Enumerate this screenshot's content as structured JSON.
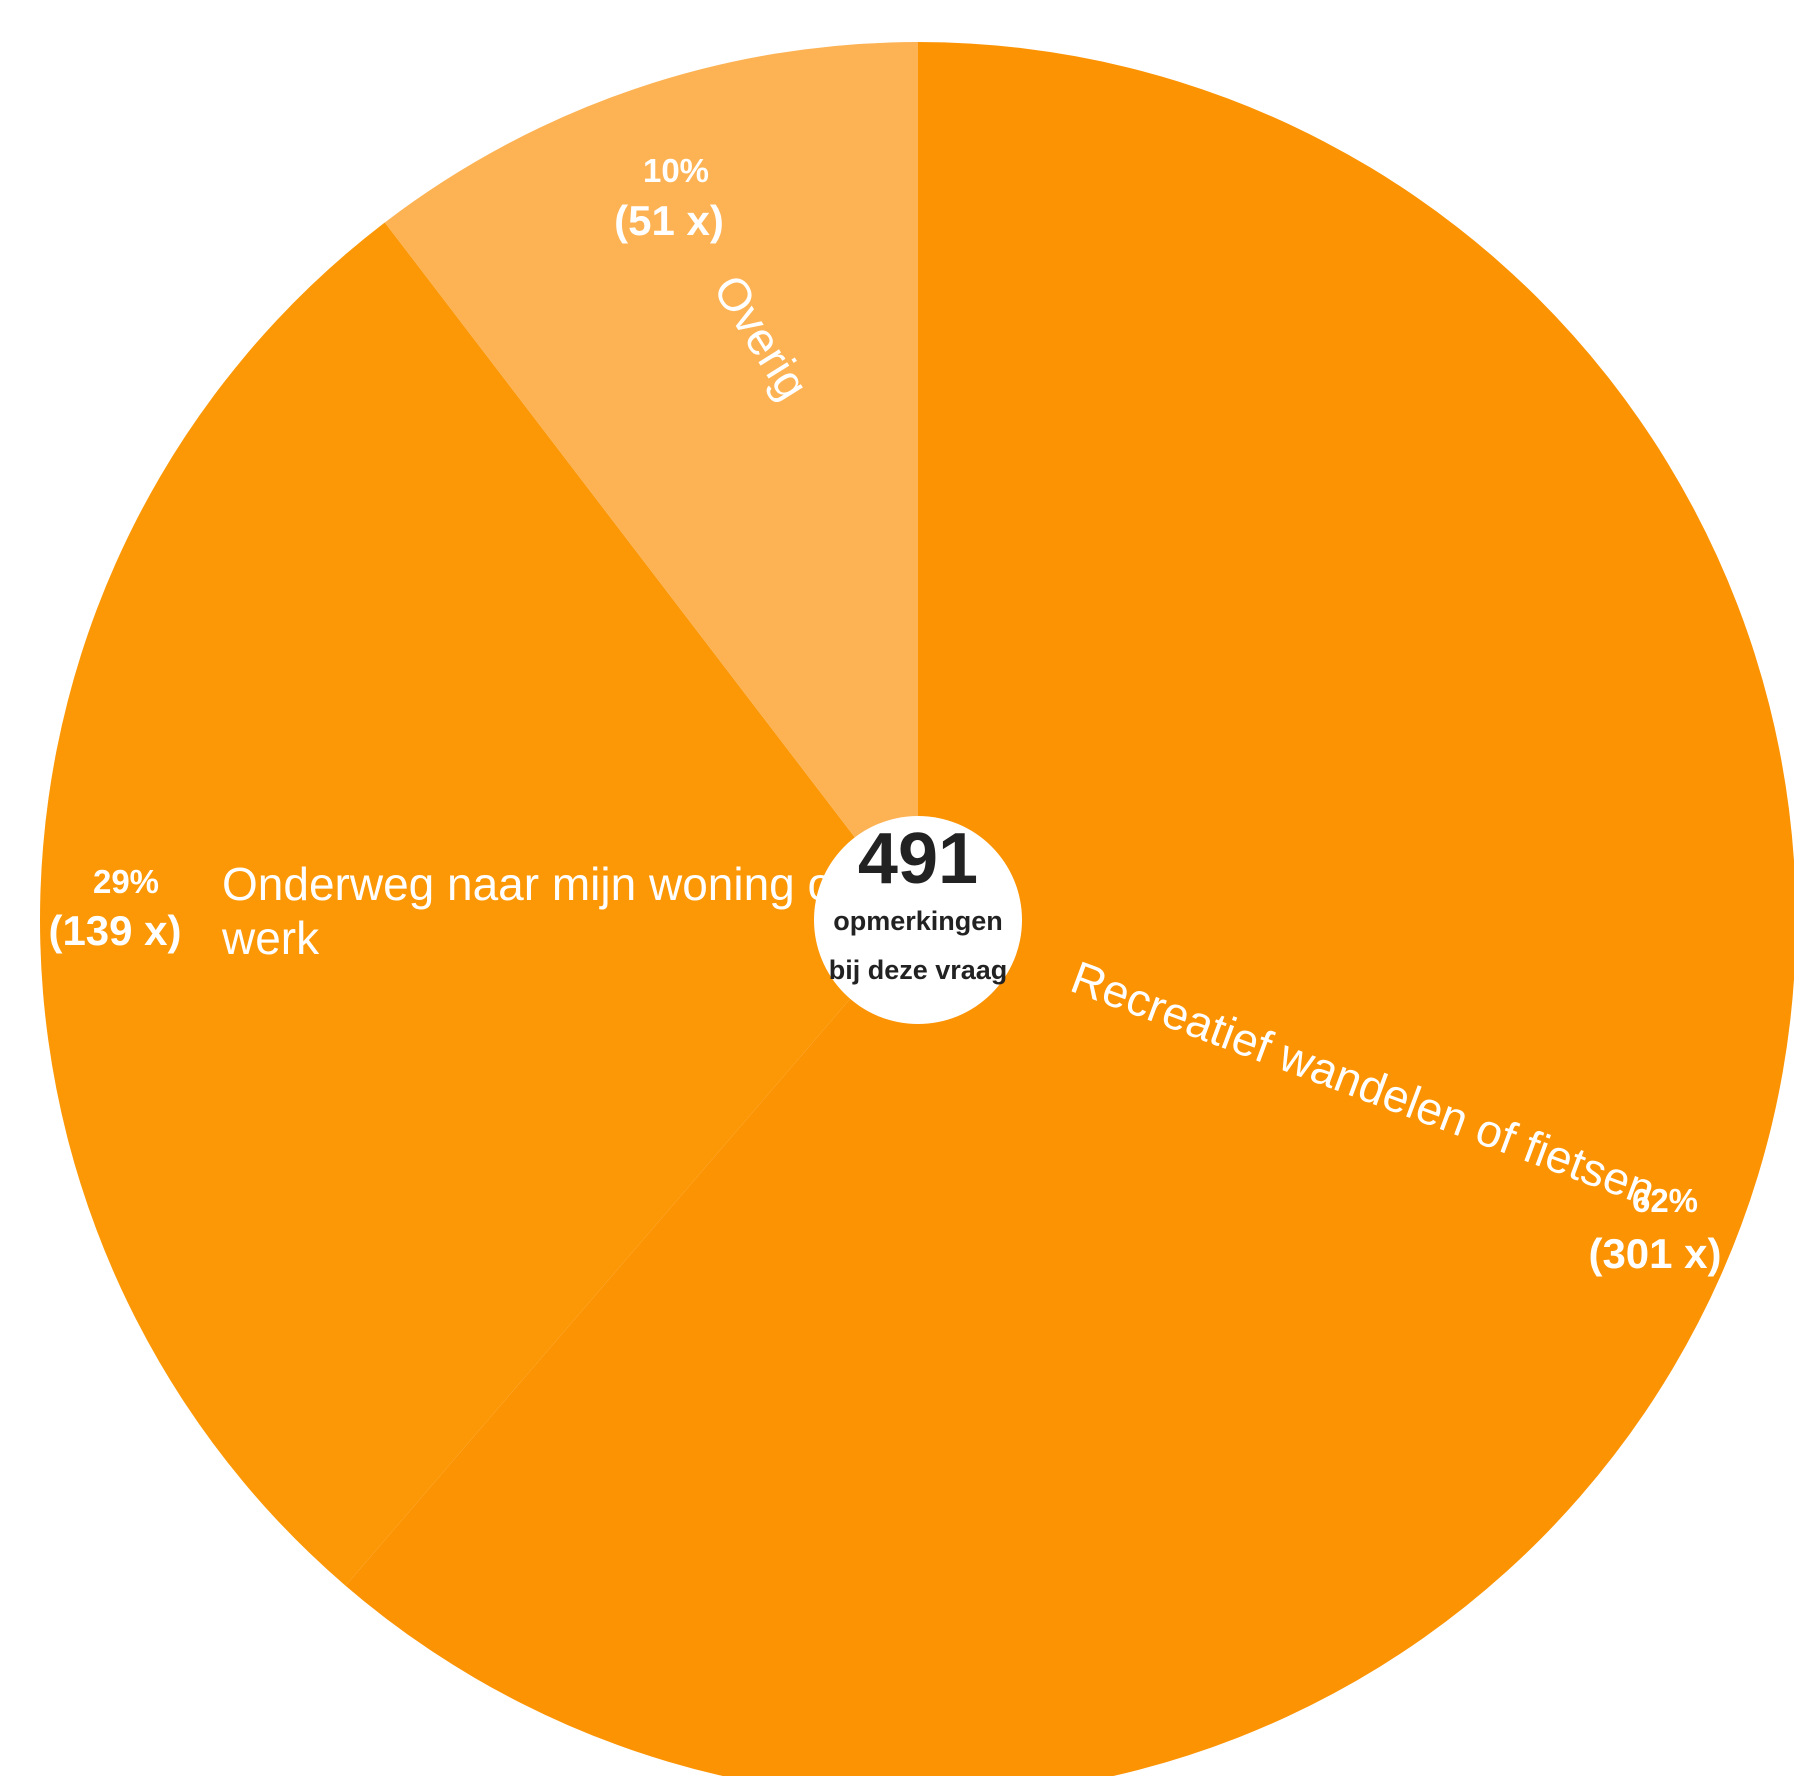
{
  "chart_data": {
    "type": "pie",
    "total": {
      "value": "491",
      "line1": "opmerkingen",
      "line2": "bij deze vraag"
    },
    "slices": [
      {
        "name_lines": [
          "Recreatief wandelen of fietsen"
        ],
        "percent": 62,
        "percent_label": "62%",
        "count_label": "(301 x)",
        "value": 301,
        "color": "#FC9303"
      },
      {
        "name_lines": [
          "Onderweg naar mijn woning of",
          "werk"
        ],
        "percent": 29,
        "percent_label": "29%",
        "count_label": "(139 x)",
        "value": 139,
        "color": "#FC9806"
      },
      {
        "name_lines": [
          "Overig"
        ],
        "percent": 10,
        "percent_label": "10%",
        "count_label": "(51 x)",
        "value": 51,
        "color": "#FDB253"
      }
    ]
  }
}
